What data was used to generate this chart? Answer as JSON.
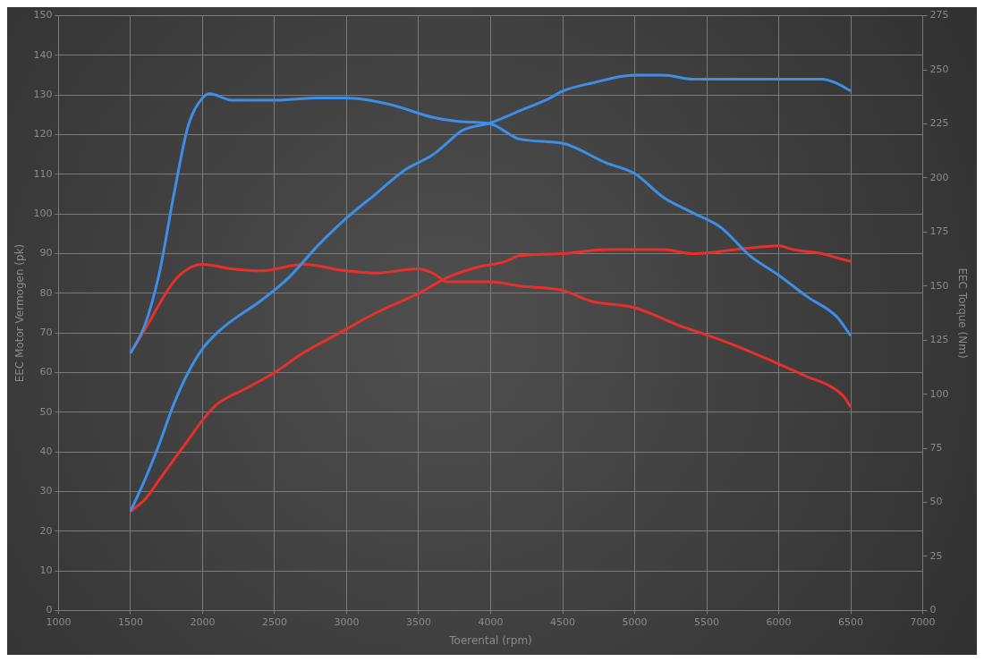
{
  "chart_data": {
    "type": "line",
    "xlabel": "Toerental (rpm)",
    "ylabel": "EEC Motor Vermogen (pk)",
    "y2label": "EEC Torque (Nm)",
    "xlim": [
      1000,
      7000
    ],
    "xticks": [
      1000,
      1500,
      2000,
      2500,
      3000,
      3500,
      4000,
      4500,
      5000,
      5500,
      6000,
      6500,
      7000
    ],
    "ylim": [
      0,
      150
    ],
    "yticks": [
      0,
      10,
      20,
      30,
      40,
      50,
      60,
      70,
      80,
      90,
      100,
      110,
      120,
      130,
      140,
      150
    ],
    "y2lim": [
      0,
      275
    ],
    "y2ticks": [
      0,
      25,
      50,
      75,
      100,
      125,
      150,
      175,
      200,
      225,
      250,
      275
    ],
    "grid": true,
    "legend": false,
    "line_style": "solid",
    "series": [
      {
        "color": "#3d8ee6",
        "x": [
          1500,
          1600,
          1700,
          1800,
          1900,
          2000,
          2100,
          2200,
          2400,
          2600,
          2800,
          3000,
          3200,
          3400,
          3600,
          3700,
          3800,
          4000,
          4200,
          4400,
          4500,
          4700,
          5000,
          5200,
          5400,
          5600,
          6000,
          6300,
          6400,
          6500
        ],
        "values": [
          25,
          33,
          42,
          52,
          60,
          66,
          70,
          73,
          78,
          84,
          92,
          99,
          105,
          111,
          115,
          118,
          121,
          123,
          126,
          129,
          131,
          133,
          135,
          135,
          134,
          134,
          134,
          134,
          133,
          131
        ]
      },
      {
        "color": "#3d8ee6",
        "axis": "y2",
        "x": [
          1500,
          1600,
          1700,
          1800,
          1900,
          2000,
          2050,
          2200,
          2500,
          2800,
          3000,
          3300,
          3600,
          3800,
          4000,
          4200,
          4500,
          4800,
          5000,
          5200,
          5400,
          5600,
          5800,
          6000,
          6200,
          6400,
          6500
        ],
        "values": [
          119,
          132,
          156,
          192,
          224,
          237,
          239,
          236,
          236,
          237,
          237,
          234,
          228,
          226,
          225,
          218,
          216,
          207,
          202,
          191,
          184,
          177,
          164,
          155,
          145,
          136,
          127
        ]
      },
      {
        "color": "#e8302a",
        "axis": "y2",
        "x": [
          1500,
          1600,
          1800,
          1900,
          2000,
          2200,
          2400,
          2700,
          3000,
          3200,
          3500,
          3600,
          3700,
          4000,
          4200,
          4500,
          4700,
          5000,
          5300,
          5600,
          6000,
          6200,
          6350,
          6450,
          6500
        ],
        "values": [
          119,
          130,
          152,
          158,
          160,
          158,
          157,
          160,
          157,
          156,
          158,
          156,
          152,
          152,
          150,
          148,
          143,
          140,
          132,
          125,
          114,
          108,
          104,
          99,
          94
        ]
      },
      {
        "color": "#e8302a",
        "x": [
          1500,
          1600,
          1700,
          1800,
          1900,
          2000,
          2100,
          2300,
          2500,
          2700,
          2900,
          3000,
          3200,
          3500,
          3700,
          3900,
          4100,
          4200,
          4500,
          4800,
          5200,
          5400,
          5700,
          6000,
          6100,
          6300,
          6400,
          6500
        ],
        "values": [
          25,
          28,
          33,
          38,
          43,
          48,
          52,
          56,
          60,
          65,
          69,
          71,
          75,
          80,
          84,
          86.5,
          88,
          89.5,
          90,
          91,
          91,
          90,
          91,
          92,
          91,
          90,
          89,
          88
        ]
      }
    ]
  }
}
